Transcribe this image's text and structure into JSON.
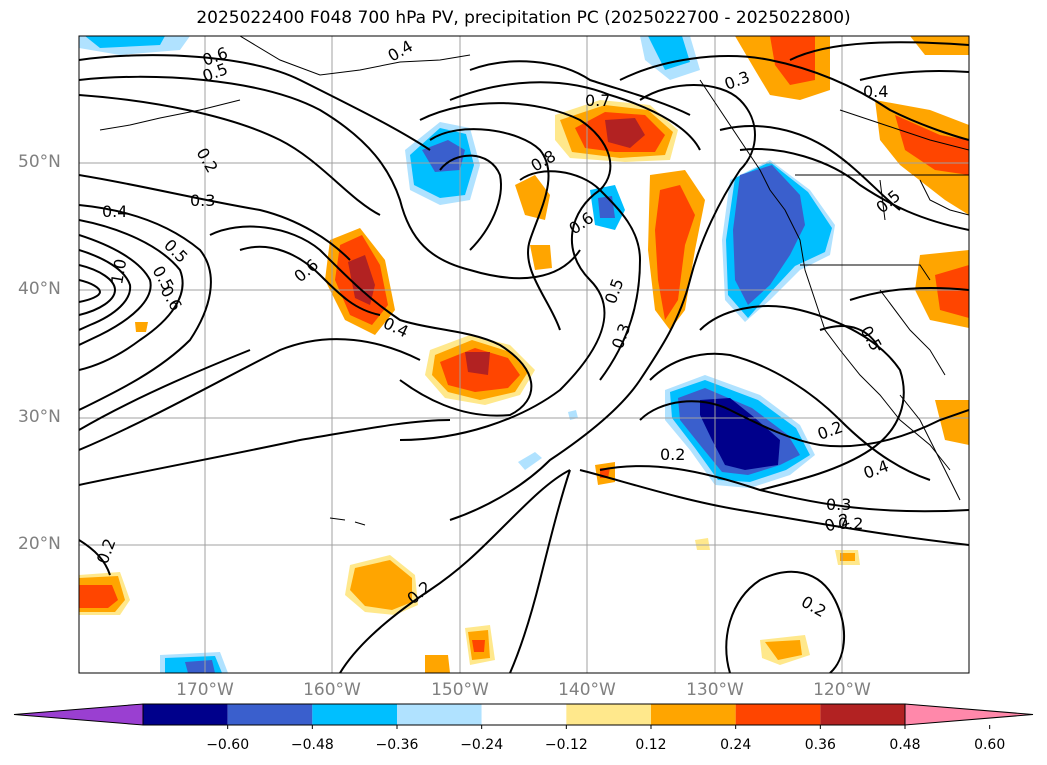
{
  "title": "2025022400 F048 700 hPa PV, precipitation PC (2025022700 - 2025022800)",
  "lat_labels": [
    "50°N",
    "40°N",
    "30°N",
    "20°N"
  ],
  "lon_labels": [
    "170°W",
    "160°W",
    "150°W",
    "140°W",
    "130°W",
    "120°W"
  ],
  "contour_labels": [
    "0.6",
    "0.5",
    "0.4",
    "0.2",
    "0.3",
    "0.4",
    "0.5",
    "0.6",
    "1.0",
    "0.5",
    "0.4",
    "0.6",
    "0.7",
    "0.8",
    "0.6",
    "0.5",
    "0.3",
    "0.3",
    "0.4",
    "0.5",
    "0.2",
    "0.2",
    "0.2",
    "0.4",
    "0.3",
    "0.2",
    "0.2",
    "0.2",
    "0.2",
    "0.5"
  ],
  "colorbar": {
    "ticks": [
      "−0.60",
      "−0.48",
      "−0.36",
      "−0.24",
      "−0.12",
      "0.12",
      "0.24",
      "0.36",
      "0.48",
      "0.60"
    ],
    "colors": [
      "#9a3fd1",
      "#00008b",
      "#3a5fcd",
      "#00bfff",
      "#b0e2ff",
      "#ffffff",
      "#ffe88c",
      "#ffa500",
      "#ff4500",
      "#b22222",
      "#ff88aa"
    ]
  },
  "legend_colors": {
    "land_outline": "#000000",
    "contour": "#000000",
    "grid": "#a0a0a0"
  }
}
